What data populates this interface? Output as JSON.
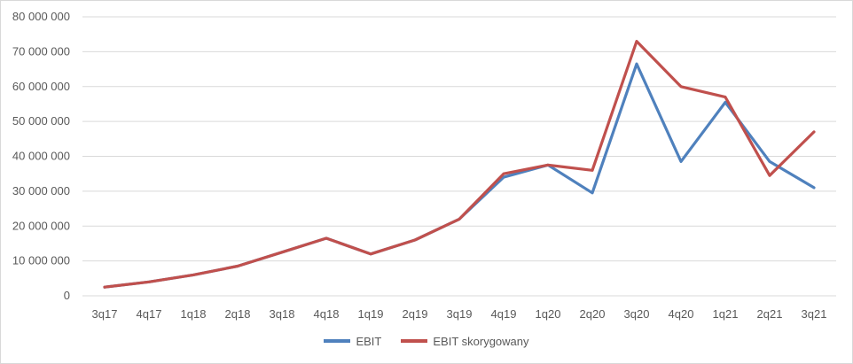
{
  "chart_data": {
    "type": "line",
    "title": "",
    "xlabel": "",
    "ylabel": "",
    "categories": [
      "3q17",
      "4q17",
      "1q18",
      "2q18",
      "3q18",
      "4q18",
      "1q19",
      "2q19",
      "3q19",
      "4q19",
      "1q20",
      "2q20",
      "3q20",
      "4q20",
      "1q21",
      "2q21",
      "3q21"
    ],
    "ylim": [
      0,
      80000000
    ],
    "yticks": [
      0,
      10000000,
      20000000,
      30000000,
      40000000,
      50000000,
      60000000,
      70000000,
      80000000
    ],
    "ytick_labels": [
      "0",
      "10 000 000",
      "20 000 000",
      "30 000 000",
      "40 000 000",
      "50 000 000",
      "60 000 000",
      "70 000 000",
      "80 000 000"
    ],
    "grid": true,
    "legend_position": "bottom",
    "series": [
      {
        "name": "EBIT",
        "color": "#4f81bd",
        "values": [
          2500000,
          4000000,
          6000000,
          8500000,
          12500000,
          16500000,
          12000000,
          16000000,
          22000000,
          34000000,
          37500000,
          29500000,
          66500000,
          38500000,
          55500000,
          38500000,
          31000000
        ]
      },
      {
        "name": "EBIT skorygowany",
        "color": "#c0504d",
        "values": [
          2500000,
          4000000,
          6000000,
          8500000,
          12500000,
          16500000,
          12000000,
          16000000,
          22000000,
          35000000,
          37500000,
          36000000,
          73000000,
          60000000,
          57000000,
          34500000,
          47000000
        ]
      }
    ]
  }
}
